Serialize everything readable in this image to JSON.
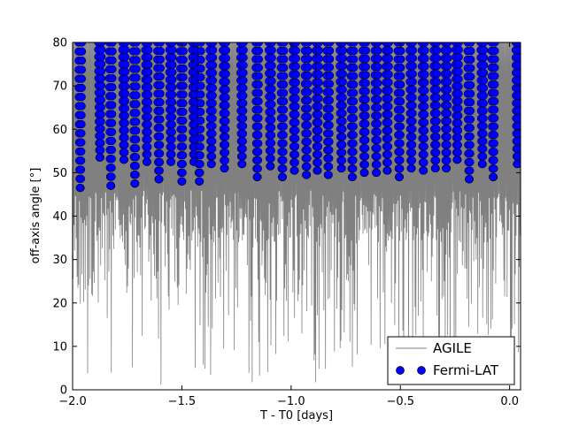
{
  "chart_data": {
    "type": "scatter",
    "title": "",
    "xlabel": "T - T0 [days]",
    "ylabel": "off-axis angle [°]",
    "xlim": [
      -2.0,
      0.05
    ],
    "ylim": [
      0,
      80
    ],
    "grid": false,
    "legend_placement": "bottom-right",
    "x_tick_labels": [
      "−2.0",
      "−1.5",
      "−1.0",
      "−0.5",
      "0.0"
    ],
    "x_tick_values": [
      -2.0,
      -1.5,
      -1.0,
      -0.5,
      0.0
    ],
    "y_tick_labels": [
      "0",
      "10",
      "20",
      "30",
      "40",
      "50",
      "60",
      "70",
      "80"
    ],
    "y_tick_values": [
      0,
      10,
      20,
      30,
      40,
      50,
      60,
      70,
      80
    ],
    "series": [
      {
        "name": "AGILE",
        "kind": "line",
        "color": "#808080",
        "band_upper": 80,
        "band_lower_typical": [
          34,
          46
        ],
        "spikes_to_low": true
      },
      {
        "name": "Fermi-LAT",
        "kind": "scatter",
        "color": "#0000ff",
        "edgecolor": "#000000",
        "visit_minima": [
          {
            "t": -1.965,
            "min": 46.5
          },
          {
            "t": -1.875,
            "min": 53.5
          },
          {
            "t": -1.825,
            "min": 47.0
          },
          {
            "t": -1.765,
            "min": 53.0
          },
          {
            "t": -1.715,
            "min": 47.5
          },
          {
            "t": -1.66,
            "min": 52.5
          },
          {
            "t": -1.605,
            "min": 48.5
          },
          {
            "t": -1.55,
            "min": 52.5
          },
          {
            "t": -1.5,
            "min": 48.0
          },
          {
            "t": -1.445,
            "min": 52.5
          },
          {
            "t": -1.42,
            "min": 48.0
          },
          {
            "t": -1.365,
            "min": 52.0
          },
          {
            "t": -1.305,
            "min": 51.0
          },
          {
            "t": -1.225,
            "min": 52.0
          },
          {
            "t": -1.155,
            "min": 49.0
          },
          {
            "t": -1.095,
            "min": 51.5
          },
          {
            "t": -1.04,
            "min": 49.0
          },
          {
            "t": -0.985,
            "min": 50.5
          },
          {
            "t": -0.93,
            "min": 49.5
          },
          {
            "t": -0.88,
            "min": 50.5
          },
          {
            "t": -0.83,
            "min": 49.5
          },
          {
            "t": -0.77,
            "min": 51.0
          },
          {
            "t": -0.72,
            "min": 49.0
          },
          {
            "t": -0.665,
            "min": 50.0
          },
          {
            "t": -0.61,
            "min": 50.0
          },
          {
            "t": -0.56,
            "min": 50.5
          },
          {
            "t": -0.505,
            "min": 49.0
          },
          {
            "t": -0.45,
            "min": 51.0
          },
          {
            "t": -0.395,
            "min": 50.5
          },
          {
            "t": -0.34,
            "min": 51.0
          },
          {
            "t": -0.29,
            "min": 51.0
          },
          {
            "t": -0.24,
            "min": 53.0
          },
          {
            "t": -0.185,
            "min": 48.5
          },
          {
            "t": -0.125,
            "min": 52.0
          },
          {
            "t": -0.075,
            "min": 49.0
          },
          {
            "t": 0.035,
            "min": 52.0
          }
        ]
      }
    ]
  }
}
